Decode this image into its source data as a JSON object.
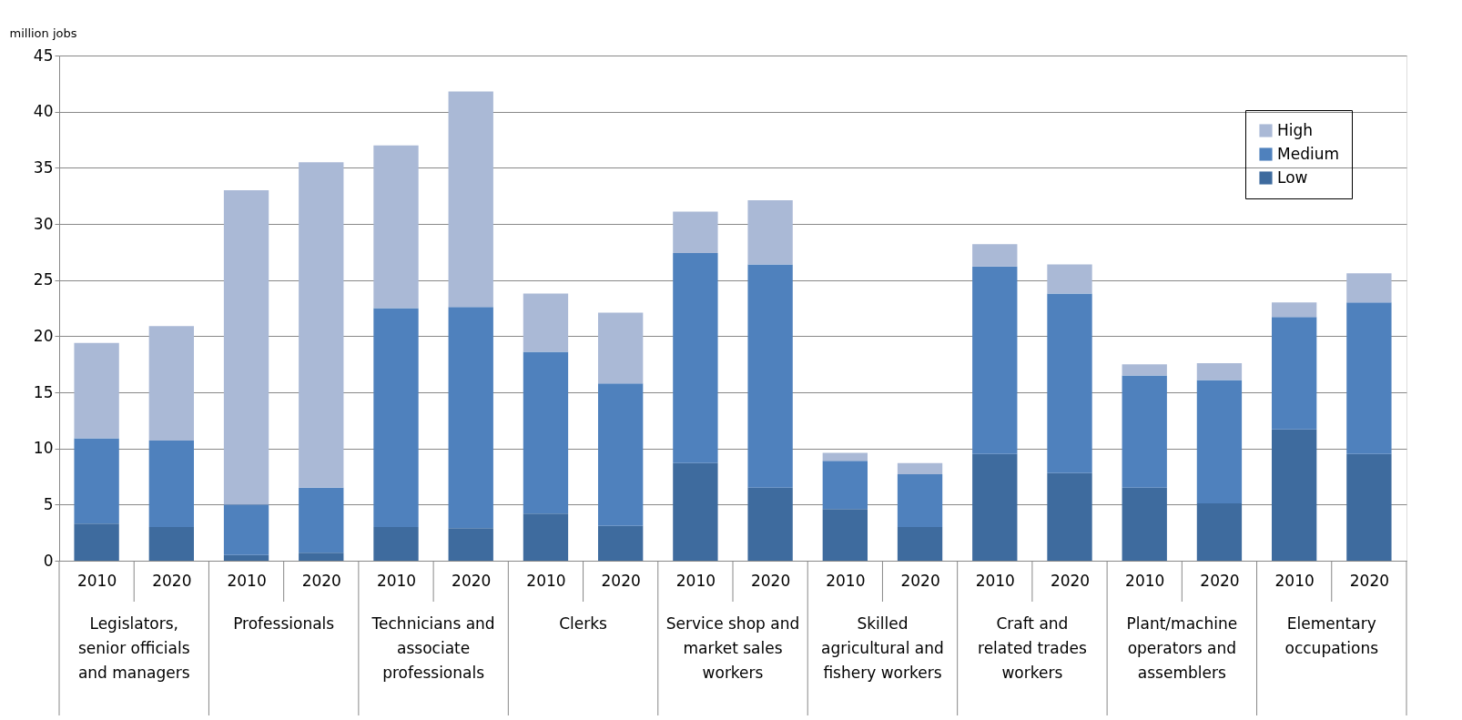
{
  "chart_data": {
    "type": "bar",
    "stacked": true,
    "ylabel": "million jobs",
    "categories": [
      "2010",
      "2020",
      "2010",
      "2020",
      "2010",
      "2020",
      "2010",
      "2020",
      "2010",
      "2020",
      "2010",
      "2020",
      "2010",
      "2020",
      "2010",
      "2020",
      "2010",
      "2020"
    ],
    "annotations": [
      "Legislators, senior officials and managers",
      "Professionals",
      "Technicians and associate professionals",
      "Clerks",
      "Service shop and market sales workers",
      "Skilled agricultural and fishery workers",
      "Craft and related trades workers",
      "Plant/machine operators and assemblers",
      "Elementary occupations"
    ],
    "series": [
      {
        "name": "Low",
        "color": "#3e6b9e",
        "values": [
          3.3,
          3.0,
          0.5,
          0.7,
          3.0,
          2.9,
          4.2,
          3.1,
          8.7,
          6.5,
          4.6,
          3.0,
          9.5,
          7.8,
          6.5,
          5.1,
          11.7,
          9.5
        ]
      },
      {
        "name": "Medium",
        "color": "#4f81bd",
        "values": [
          7.6,
          7.7,
          4.5,
          5.8,
          19.5,
          19.7,
          14.4,
          12.7,
          18.7,
          19.9,
          4.3,
          4.7,
          16.7,
          16.0,
          10.0,
          11.0,
          10.0,
          13.5
        ]
      },
      {
        "name": "High",
        "color": "#aab9d6",
        "values": [
          8.5,
          10.2,
          28.0,
          29.0,
          14.5,
          19.2,
          5.2,
          6.3,
          3.7,
          5.7,
          0.7,
          1.0,
          2.0,
          2.6,
          1.0,
          1.5,
          1.3,
          2.6
        ]
      }
    ],
    "ylim": [
      0,
      45
    ],
    "yticks": [
      0,
      5,
      10,
      15,
      20,
      25,
      30,
      35,
      40,
      45
    ],
    "grid": "y",
    "legend": "top right"
  }
}
